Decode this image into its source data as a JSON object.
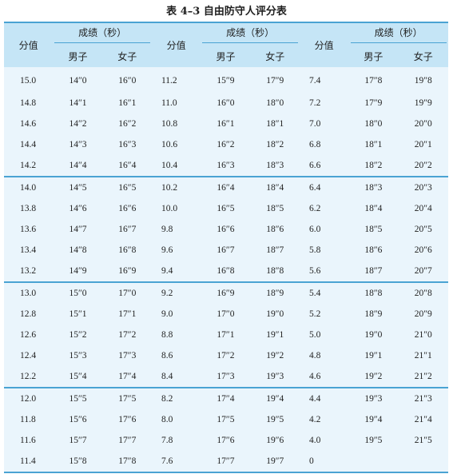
{
  "caption": "表 4–3  自由防守人评分表",
  "header": {
    "score_label": "分值",
    "group_label": "成绩（秒）",
    "male_label": "男子",
    "female_label": "女子"
  },
  "rows": [
    [
      "15.0",
      "14″0",
      "16″0",
      "11.2",
      "15″9",
      "17″9",
      "7.4",
      "17″8",
      "19″8"
    ],
    [
      "14.8",
      "14″1",
      "16″1",
      "11.0",
      "16″0",
      "18″0",
      "7.2",
      "17″9",
      "19″9"
    ],
    [
      "14.6",
      "14″2",
      "16″2",
      "10.8",
      "16″1",
      "18″1",
      "7.0",
      "18″0",
      "20″0"
    ],
    [
      "14.4",
      "14″3",
      "16″3",
      "10.6",
      "16″2",
      "18″2",
      "6.8",
      "18″1",
      "20″1"
    ],
    [
      "14.2",
      "14″4",
      "16″4",
      "10.4",
      "16″3",
      "18″3",
      "6.6",
      "18″2",
      "20″2"
    ],
    [
      "14.0",
      "14″5",
      "16″5",
      "10.2",
      "16″4",
      "18″4",
      "6.4",
      "18″3",
      "20″3"
    ],
    [
      "13.8",
      "14″6",
      "16″6",
      "10.0",
      "16″5",
      "18″5",
      "6.2",
      "18″4",
      "20″4"
    ],
    [
      "13.6",
      "14″7",
      "16″7",
      "9.8",
      "16″6",
      "18″6",
      "6.0",
      "18″5",
      "20″5"
    ],
    [
      "13.4",
      "14″8",
      "16″8",
      "9.6",
      "16″7",
      "18″7",
      "5.8",
      "18″6",
      "20″6"
    ],
    [
      "13.2",
      "14″9",
      "16″9",
      "9.4",
      "16″8",
      "18″8",
      "5.6",
      "18″7",
      "20″7"
    ],
    [
      "13.0",
      "15″0",
      "17″0",
      "9.2",
      "16″9",
      "18″9",
      "5.4",
      "18″8",
      "20″8"
    ],
    [
      "12.8",
      "15″1",
      "17″1",
      "9.0",
      "17″0",
      "19″0",
      "5.2",
      "18″9",
      "20″9"
    ],
    [
      "12.6",
      "15″2",
      "17″2",
      "8.8",
      "17″1",
      "19″1",
      "5.0",
      "19″0",
      "21″0"
    ],
    [
      "12.4",
      "15″3",
      "17″3",
      "8.6",
      "17″2",
      "19″2",
      "4.8",
      "19″1",
      "21″1"
    ],
    [
      "12.2",
      "15″4",
      "17″4",
      "8.4",
      "17″3",
      "19″3",
      "4.6",
      "19″2",
      "21″2"
    ],
    [
      "12.0",
      "15″5",
      "17″5",
      "8.2",
      "17″4",
      "19″4",
      "4.4",
      "19″3",
      "21″3"
    ],
    [
      "11.8",
      "15″6",
      "17″6",
      "8.0",
      "17″5",
      "19″5",
      "4.2",
      "19″4",
      "21″4"
    ],
    [
      "11.6",
      "15″7",
      "17″7",
      "7.8",
      "17″6",
      "19″6",
      "4.0",
      "19″5",
      "21″5"
    ],
    [
      "11.4",
      "15″8",
      "17″8",
      "7.6",
      "17″7",
      "19″7",
      "0",
      "",
      ""
    ]
  ]
}
